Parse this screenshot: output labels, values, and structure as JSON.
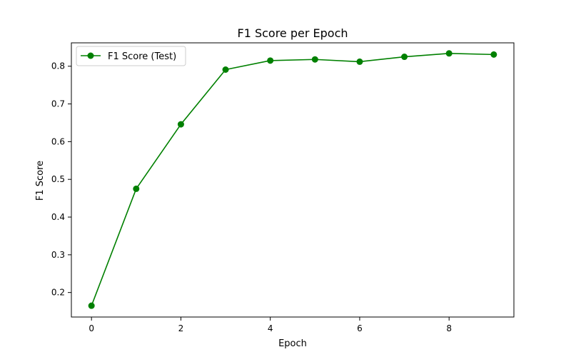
{
  "chart_data": {
    "type": "line",
    "title": "F1 Score per Epoch",
    "xlabel": "Epoch",
    "ylabel": "F1 Score",
    "xlim": [
      -0.45,
      9.45
    ],
    "ylim": [
      0.135,
      0.862
    ],
    "xticks": [
      0,
      2,
      4,
      6,
      8
    ],
    "yticks": [
      0.2,
      0.3,
      0.4,
      0.5,
      0.6,
      0.7,
      0.8
    ],
    "xtick_labels": [
      "0",
      "2",
      "4",
      "6",
      "8"
    ],
    "ytick_labels": [
      "0.2",
      "0.3",
      "0.4",
      "0.5",
      "0.6",
      "0.7",
      "0.8"
    ],
    "grid": false,
    "legend_position": "top-left",
    "series": [
      {
        "name": "F1 Score (Test)",
        "color": "#008000",
        "marker": "circle",
        "x": [
          0,
          1,
          2,
          3,
          4,
          5,
          6,
          7,
          8,
          9
        ],
        "y": [
          0.165,
          0.475,
          0.646,
          0.791,
          0.815,
          0.818,
          0.812,
          0.825,
          0.834,
          0.831
        ]
      }
    ]
  }
}
